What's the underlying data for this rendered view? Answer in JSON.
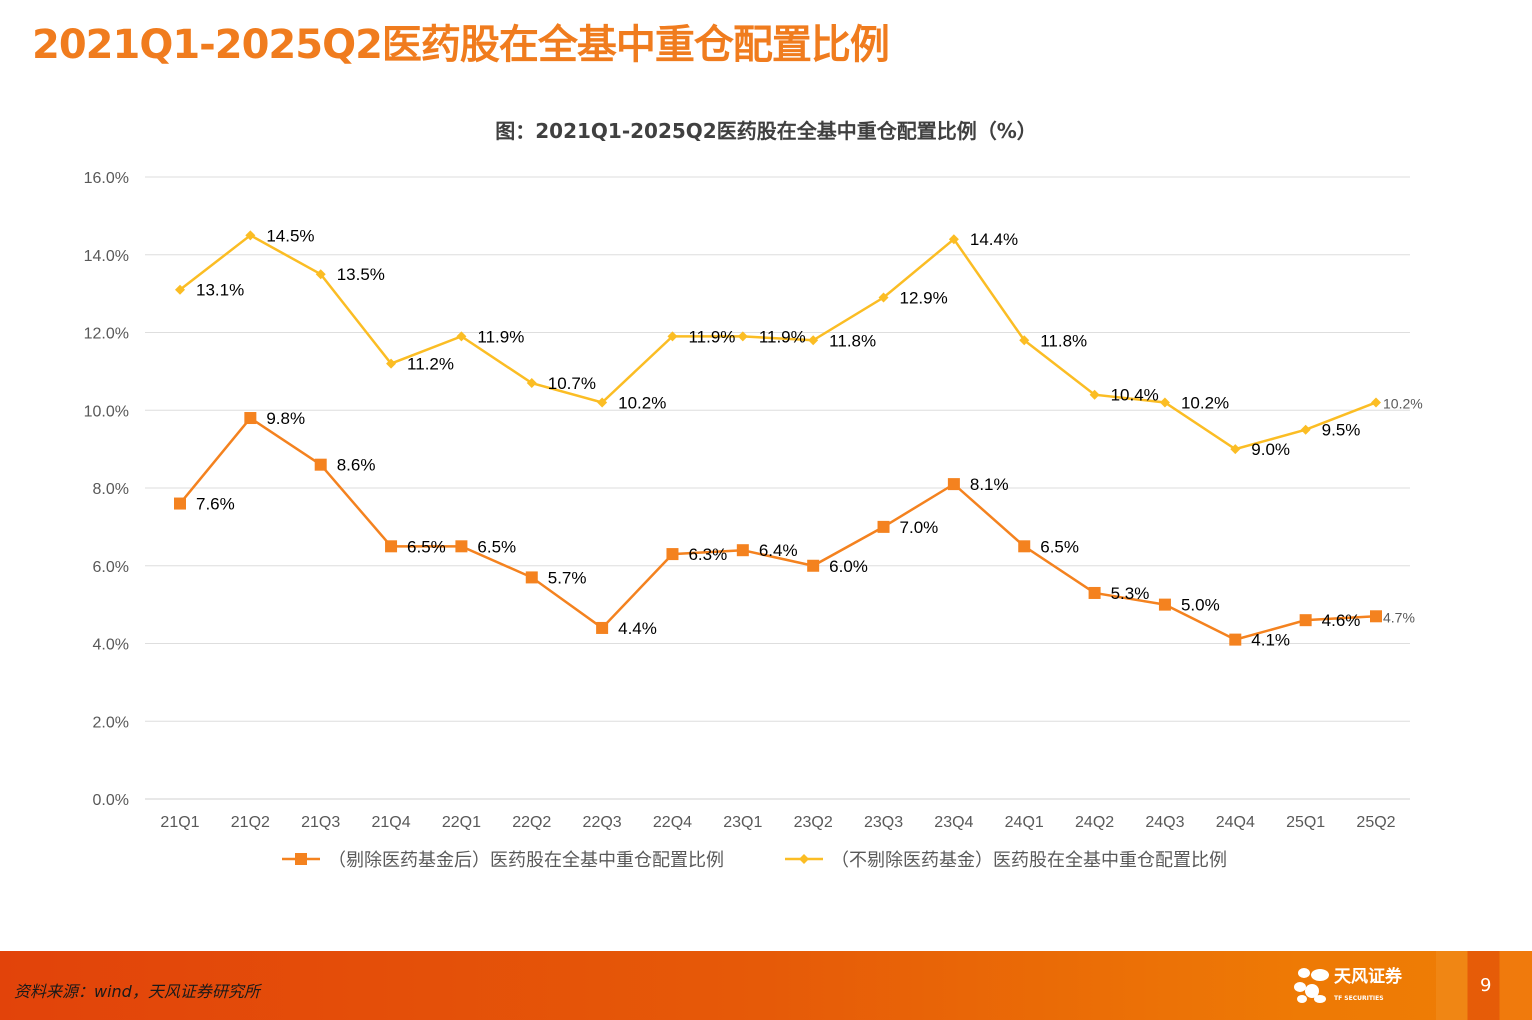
{
  "slide_title": "2021Q1-2025Q2医药股在全基中重仓配置比例",
  "footer": {
    "source": "资料来源：wind，天风证券研究所",
    "logo_cn": "天风证券",
    "logo_en": "TF SECURITIES",
    "page_number": "9"
  },
  "chart_data": {
    "type": "line",
    "title": "图：2021Q1-2025Q2医药股在全基中重仓配置比例（%）",
    "categories": [
      "21Q1",
      "21Q2",
      "21Q3",
      "21Q4",
      "22Q1",
      "22Q2",
      "22Q3",
      "22Q4",
      "23Q1",
      "23Q2",
      "23Q3",
      "23Q4",
      "24Q1",
      "24Q2",
      "24Q3",
      "24Q4",
      "25Q1",
      "25Q2"
    ],
    "ylim": [
      0,
      16
    ],
    "yticks": [
      "0.0%",
      "2.0%",
      "4.0%",
      "6.0%",
      "8.0%",
      "10.0%",
      "12.0%",
      "14.0%",
      "16.0%"
    ],
    "grid": true,
    "legend_position": "bottom",
    "series": [
      {
        "name": "（剔除医药基金后）医药股在全基中重仓配置比例",
        "color": "#f4821f",
        "marker": "square",
        "values": [
          7.6,
          9.8,
          8.6,
          6.5,
          6.5,
          5.7,
          4.4,
          6.3,
          6.4,
          6.0,
          7.0,
          8.1,
          6.5,
          5.3,
          5.0,
          4.1,
          4.6,
          4.7
        ],
        "labels": [
          "7.6%",
          "9.8%",
          "8.6%",
          "6.5%",
          "6.5%",
          "5.7%",
          "4.4%",
          "6.3%",
          "6.4%",
          "6.0%",
          "7.0%",
          "8.1%",
          "6.5%",
          "5.3%",
          "5.0%",
          "4.1%",
          "4.6%",
          "4.7%"
        ]
      },
      {
        "name": "（不剔除医药基金）医药股在全基中重仓配置比例",
        "color": "#fbbd24",
        "marker": "diamond",
        "values": [
          13.1,
          14.5,
          13.5,
          11.2,
          11.9,
          10.7,
          10.2,
          11.9,
          11.9,
          11.8,
          12.9,
          14.4,
          11.8,
          10.4,
          10.2,
          9.0,
          9.5,
          10.2
        ],
        "labels": [
          "13.1%",
          "14.5%",
          "13.5%",
          "11.2%",
          "11.9%",
          "10.7%",
          "10.2%",
          "11.9%",
          "11.9%",
          "11.8%",
          "12.9%",
          "14.4%",
          "11.8%",
          "10.4%",
          "10.2%",
          "9.0%",
          "9.5%",
          "10.2%"
        ]
      }
    ]
  }
}
